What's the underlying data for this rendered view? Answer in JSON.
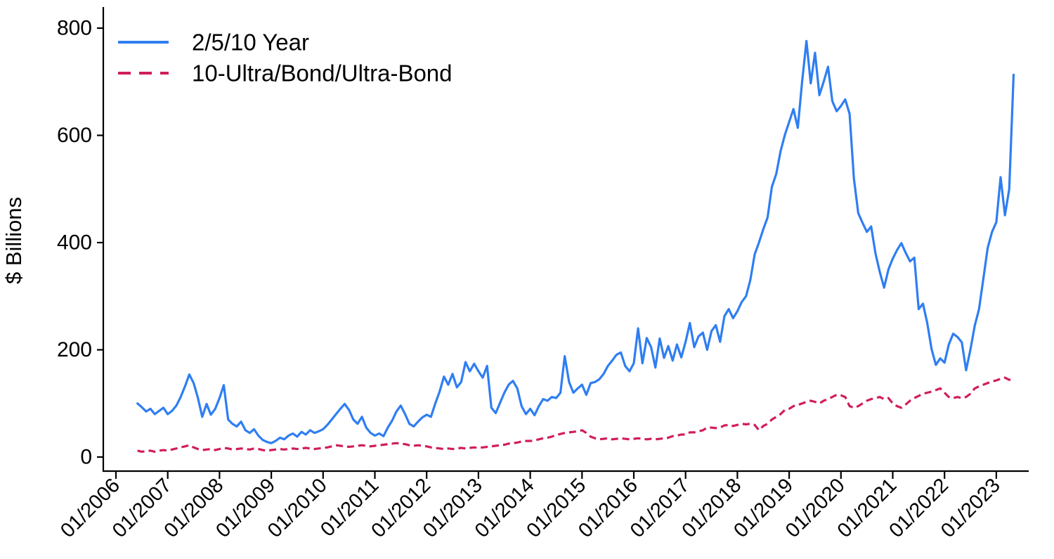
{
  "figure": {
    "background": "#ffffff",
    "axis_color": "#000000",
    "text_color": "#000000"
  },
  "chart_data": {
    "type": "line",
    "title": "",
    "xlabel": "",
    "ylabel": "$ Billions",
    "ylim": [
      0,
      800
    ],
    "yticks": [
      0,
      200,
      400,
      600,
      800
    ],
    "ytick_labels": [
      "0",
      "200",
      "400",
      "600",
      "800"
    ],
    "xtick_labels": [
      "01/2006",
      "01/2007",
      "01/2008",
      "01/2009",
      "01/2010",
      "01/2011",
      "01/2012",
      "01/2013",
      "01/2014",
      "01/2015",
      "01/2016",
      "01/2017",
      "01/2018",
      "01/2019",
      "01/2020",
      "01/2021",
      "01/2022",
      "01/2023"
    ],
    "x_axis": {
      "start_year": 2006,
      "start_month": 6,
      "end_year": 2023,
      "end_month": 5,
      "frequency": "monthly"
    },
    "grid": false,
    "legend": {
      "position": "top-left"
    },
    "series": [
      {
        "name": "2/5/10 Year",
        "color": "#2e7ef2",
        "style": "solid",
        "values": [
          100,
          93,
          85,
          90,
          80,
          86,
          92,
          80,
          86,
          96,
          112,
          132,
          154,
          138,
          110,
          75,
          99,
          79,
          90,
          110,
          134,
          70,
          62,
          57,
          66,
          50,
          45,
          52,
          40,
          32,
          28,
          26,
          30,
          36,
          33,
          40,
          44,
          38,
          47,
          42,
          50,
          45,
          48,
          52,
          60,
          70,
          80,
          90,
          99,
          88,
          70,
          62,
          75,
          55,
          45,
          40,
          44,
          39,
          55,
          68,
          85,
          96,
          80,
          62,
          57,
          66,
          74,
          79,
          75,
          100,
          122,
          150,
          135,
          155,
          130,
          140,
          177,
          160,
          174,
          160,
          148,
          170,
          92,
          82,
          101,
          120,
          135,
          142,
          128,
          95,
          80,
          90,
          78,
          95,
          108,
          105,
          112,
          110,
          120,
          188,
          140,
          120,
          128,
          135,
          116,
          138,
          140,
          145,
          155,
          170,
          180,
          191,
          195,
          170,
          160,
          175,
          240,
          175,
          222,
          205,
          167,
          221,
          185,
          207,
          180,
          210,
          186,
          215,
          250,
          205,
          225,
          232,
          200,
          235,
          246,
          215,
          263,
          276,
          259,
          272,
          289,
          300,
          330,
          378,
          400,
          425,
          447,
          504,
          528,
          570,
          601,
          625,
          649,
          614,
          700,
          776,
          697,
          754,
          675,
          700,
          728,
          664,
          645,
          655,
          667,
          640,
          520,
          455,
          437,
          420,
          430,
          380,
          345,
          316,
          350,
          370,
          386,
          399,
          381,
          365,
          372,
          276,
          286,
          250,
          201,
          172,
          184,
          176,
          210,
          230,
          224,
          214,
          162,
          200,
          245,
          276,
          333,
          390,
          420,
          438,
          522,
          451,
          500,
          713
        ]
      },
      {
        "name": "10-Ultra/Bond/Ultra-Bond",
        "color": "#d11d5e",
        "style": "dashed",
        "values": [
          12,
          10,
          11,
          12,
          10,
          12,
          13,
          12,
          14,
          16,
          18,
          20,
          22,
          18,
          15,
          13,
          14,
          15,
          13,
          15,
          17,
          16,
          14,
          15,
          16,
          15,
          14,
          16,
          15,
          13,
          12,
          13,
          14,
          15,
          14,
          15,
          16,
          15,
          16,
          17,
          16,
          15,
          16,
          17,
          18,
          20,
          22,
          21,
          20,
          19,
          20,
          21,
          22,
          21,
          20,
          21,
          22,
          23,
          24,
          25,
          26,
          25,
          24,
          22,
          21,
          22,
          21,
          20,
          18,
          17,
          16,
          15,
          16,
          15,
          16,
          17,
          16,
          17,
          18,
          17,
          18,
          19,
          20,
          21,
          22,
          23,
          25,
          26,
          27,
          29,
          30,
          30,
          31,
          33,
          35,
          36,
          38,
          41,
          43,
          45,
          46,
          47,
          48,
          50,
          45,
          38,
          35,
          33,
          34,
          35,
          33,
          34,
          35,
          34,
          33,
          34,
          35,
          34,
          33,
          34,
          33,
          34,
          35,
          36,
          39,
          40,
          42,
          42,
          46,
          46,
          48,
          50,
          55,
          55,
          54,
          55,
          59,
          60,
          58,
          60,
          62,
          61,
          62,
          60,
          50,
          58,
          62,
          70,
          75,
          80,
          88,
          90,
          95,
          97,
          100,
          103,
          105,
          103,
          100,
          105,
          108,
          112,
          116,
          115,
          112,
          95,
          92,
          95,
          100,
          105,
          108,
          110,
          112,
          108,
          110,
          100,
          95,
          92,
          98,
          105,
          110,
          114,
          118,
          120,
          122,
          125,
          128,
          120,
          112,
          110,
          112,
          110,
          112,
          118,
          128,
          132,
          135,
          138,
          141,
          143,
          146,
          148,
          144,
          146
        ]
      }
    ]
  }
}
